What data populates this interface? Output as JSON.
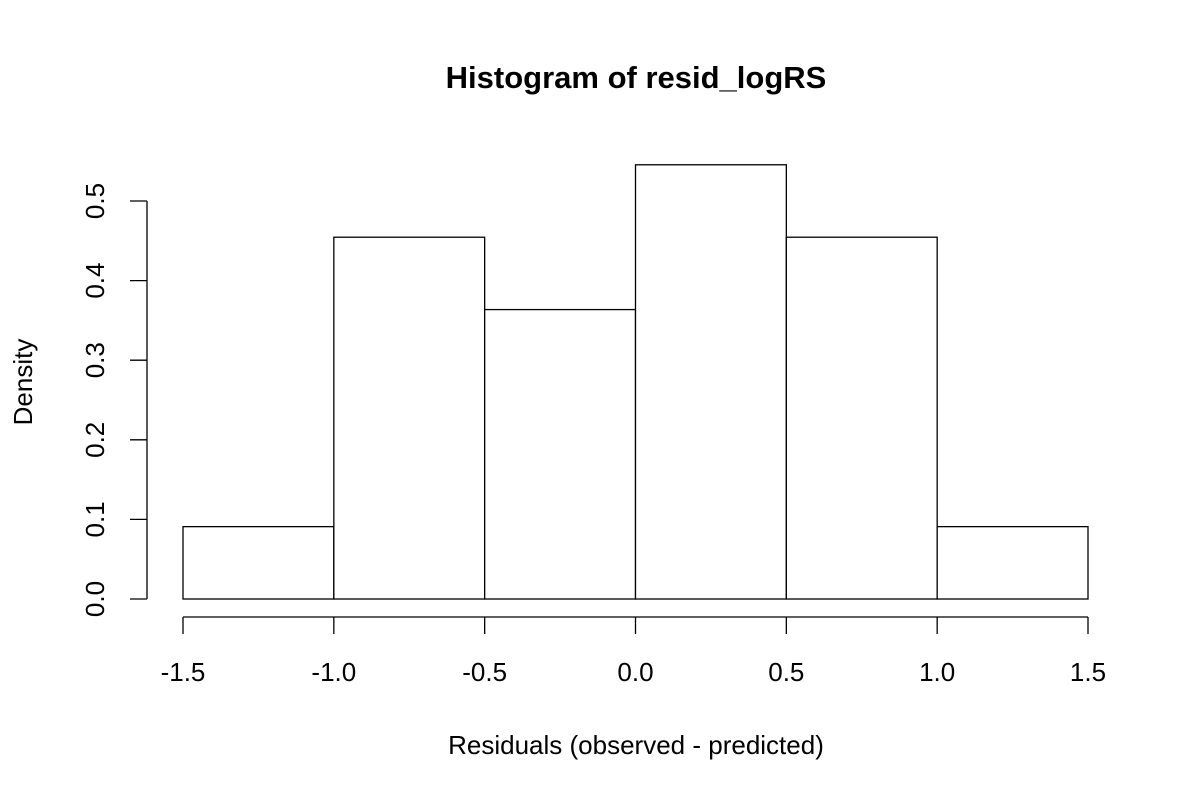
{
  "chart_data": {
    "type": "bar",
    "subtype": "histogram",
    "title": "Histogram of resid_logRS",
    "xlabel": "Residuals (observed - predicted)",
    "ylabel": "Density",
    "bin_edges": [
      -1.5,
      -1.0,
      -0.5,
      0.0,
      0.5,
      1.0,
      1.5
    ],
    "values": [
      0.0909,
      0.4545,
      0.3636,
      0.5455,
      0.4545,
      0.0909
    ],
    "x_ticks": [
      -1.5,
      -1.0,
      -0.5,
      0.0,
      0.5,
      1.0,
      1.5
    ],
    "x_tick_labels": [
      "-1.5",
      "-1.0",
      "-0.5",
      "0.0",
      "0.5",
      "1.0",
      "1.5"
    ],
    "y_ticks": [
      0.0,
      0.1,
      0.2,
      0.3,
      0.4,
      0.5
    ],
    "y_tick_labels": [
      "0.0",
      "0.1",
      "0.2",
      "0.3",
      "0.4",
      "0.5"
    ],
    "xlim": [
      -1.5,
      1.5
    ],
    "ylim": [
      0,
      0.5
    ],
    "grid": false,
    "colors": {
      "bar_fill": "#ffffff",
      "bar_stroke": "#000000",
      "axis": "#000000",
      "background": "#ffffff"
    }
  }
}
